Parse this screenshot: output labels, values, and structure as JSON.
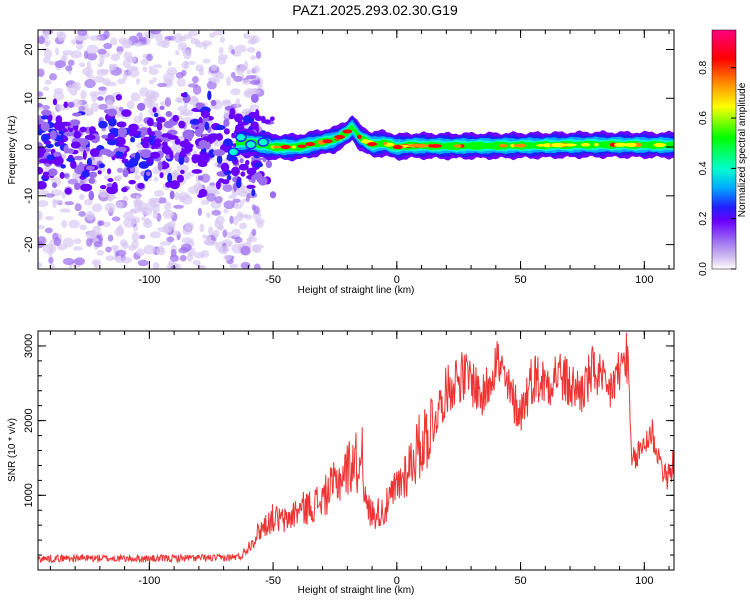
{
  "title": "PAZ1.2025.293.02.30.G19",
  "chart_data": [
    {
      "type": "heatmap",
      "xlabel": "Height of straight line (km)",
      "ylabel": "Frequency (Hz)",
      "xlim": [
        -145,
        112
      ],
      "ylim": [
        -25,
        24
      ],
      "xticks": [
        -100,
        -50,
        0,
        50,
        100
      ],
      "xtick_labels": [
        "-100",
        "-50",
        "0",
        "50",
        "100"
      ],
      "yticks": [
        -20,
        -10,
        0,
        10,
        20
      ],
      "ytick_labels": [
        "-20",
        "-10",
        "0",
        "10",
        "20"
      ],
      "colorbar": {
        "label": "Normalized spectral amplitude",
        "range": [
          0,
          0.95
        ],
        "ticks": [
          0.0,
          0.2,
          0.4,
          0.6,
          0.8
        ],
        "tick_labels": [
          "0.0",
          "0.2",
          "0.4",
          "0.6",
          "0.8"
        ]
      },
      "ridge": {
        "description_points_x": [
          -60,
          -50,
          -40,
          -30,
          -25,
          -20,
          -18,
          -15,
          -10,
          -5,
          0,
          5,
          20,
          50,
          80,
          110
        ],
        "description_points_y": [
          1,
          0,
          0,
          1,
          1.5,
          3,
          4,
          2,
          0.5,
          0.8,
          0,
          0.3,
          0.2,
          0.3,
          0.5,
          0.4
        ]
      },
      "colors": [
        "#ffffff",
        "#d9c9f2",
        "#9b6cf0",
        "#6a00ff",
        "#2020ff",
        "#00aaff",
        "#00ffcc",
        "#00ff00",
        "#ffff00",
        "#ff8800",
        "#ff0000",
        "#ff0080"
      ]
    },
    {
      "type": "line",
      "xlabel": "Height of straight line (km)",
      "ylabel": "SNR (10 * v/v)",
      "xlim": [
        -145,
        112
      ],
      "ylim": [
        0,
        3200
      ],
      "xticks": [
        -100,
        -50,
        0,
        50,
        100
      ],
      "xtick_labels": [
        "-100",
        "-50",
        "0",
        "50",
        "100"
      ],
      "yticks": [
        1000,
        2000,
        3000
      ],
      "ytick_labels": [
        "1000",
        "2000",
        "3000"
      ],
      "series": [
        {
          "name": "SNR",
          "color": "#ee3333",
          "x": [
            -145,
            -130,
            -115,
            -100,
            -85,
            -70,
            -63,
            -58,
            -55,
            -50,
            -45,
            -40,
            -35,
            -30,
            -25,
            -20,
            -17,
            -15,
            -14,
            -13,
            -10,
            -5,
            0,
            5,
            10,
            15,
            20,
            25,
            30,
            35,
            40,
            45,
            50,
            55,
            60,
            65,
            70,
            75,
            80,
            85,
            90,
            93,
            95,
            100,
            103,
            106,
            109,
            112
          ],
          "y": [
            150,
            160,
            155,
            150,
            160,
            160,
            180,
            400,
            550,
            700,
            650,
            800,
            850,
            950,
            1150,
            1350,
            1500,
            1300,
            1950,
            900,
            750,
            800,
            1100,
            1400,
            1700,
            2000,
            2400,
            2600,
            2550,
            2300,
            2850,
            2400,
            2100,
            2600,
            2500,
            2650,
            2450,
            2400,
            2700,
            2350,
            2650,
            2900,
            1400,
            1700,
            1850,
            1500,
            1200,
            1450
          ]
        }
      ]
    }
  ]
}
